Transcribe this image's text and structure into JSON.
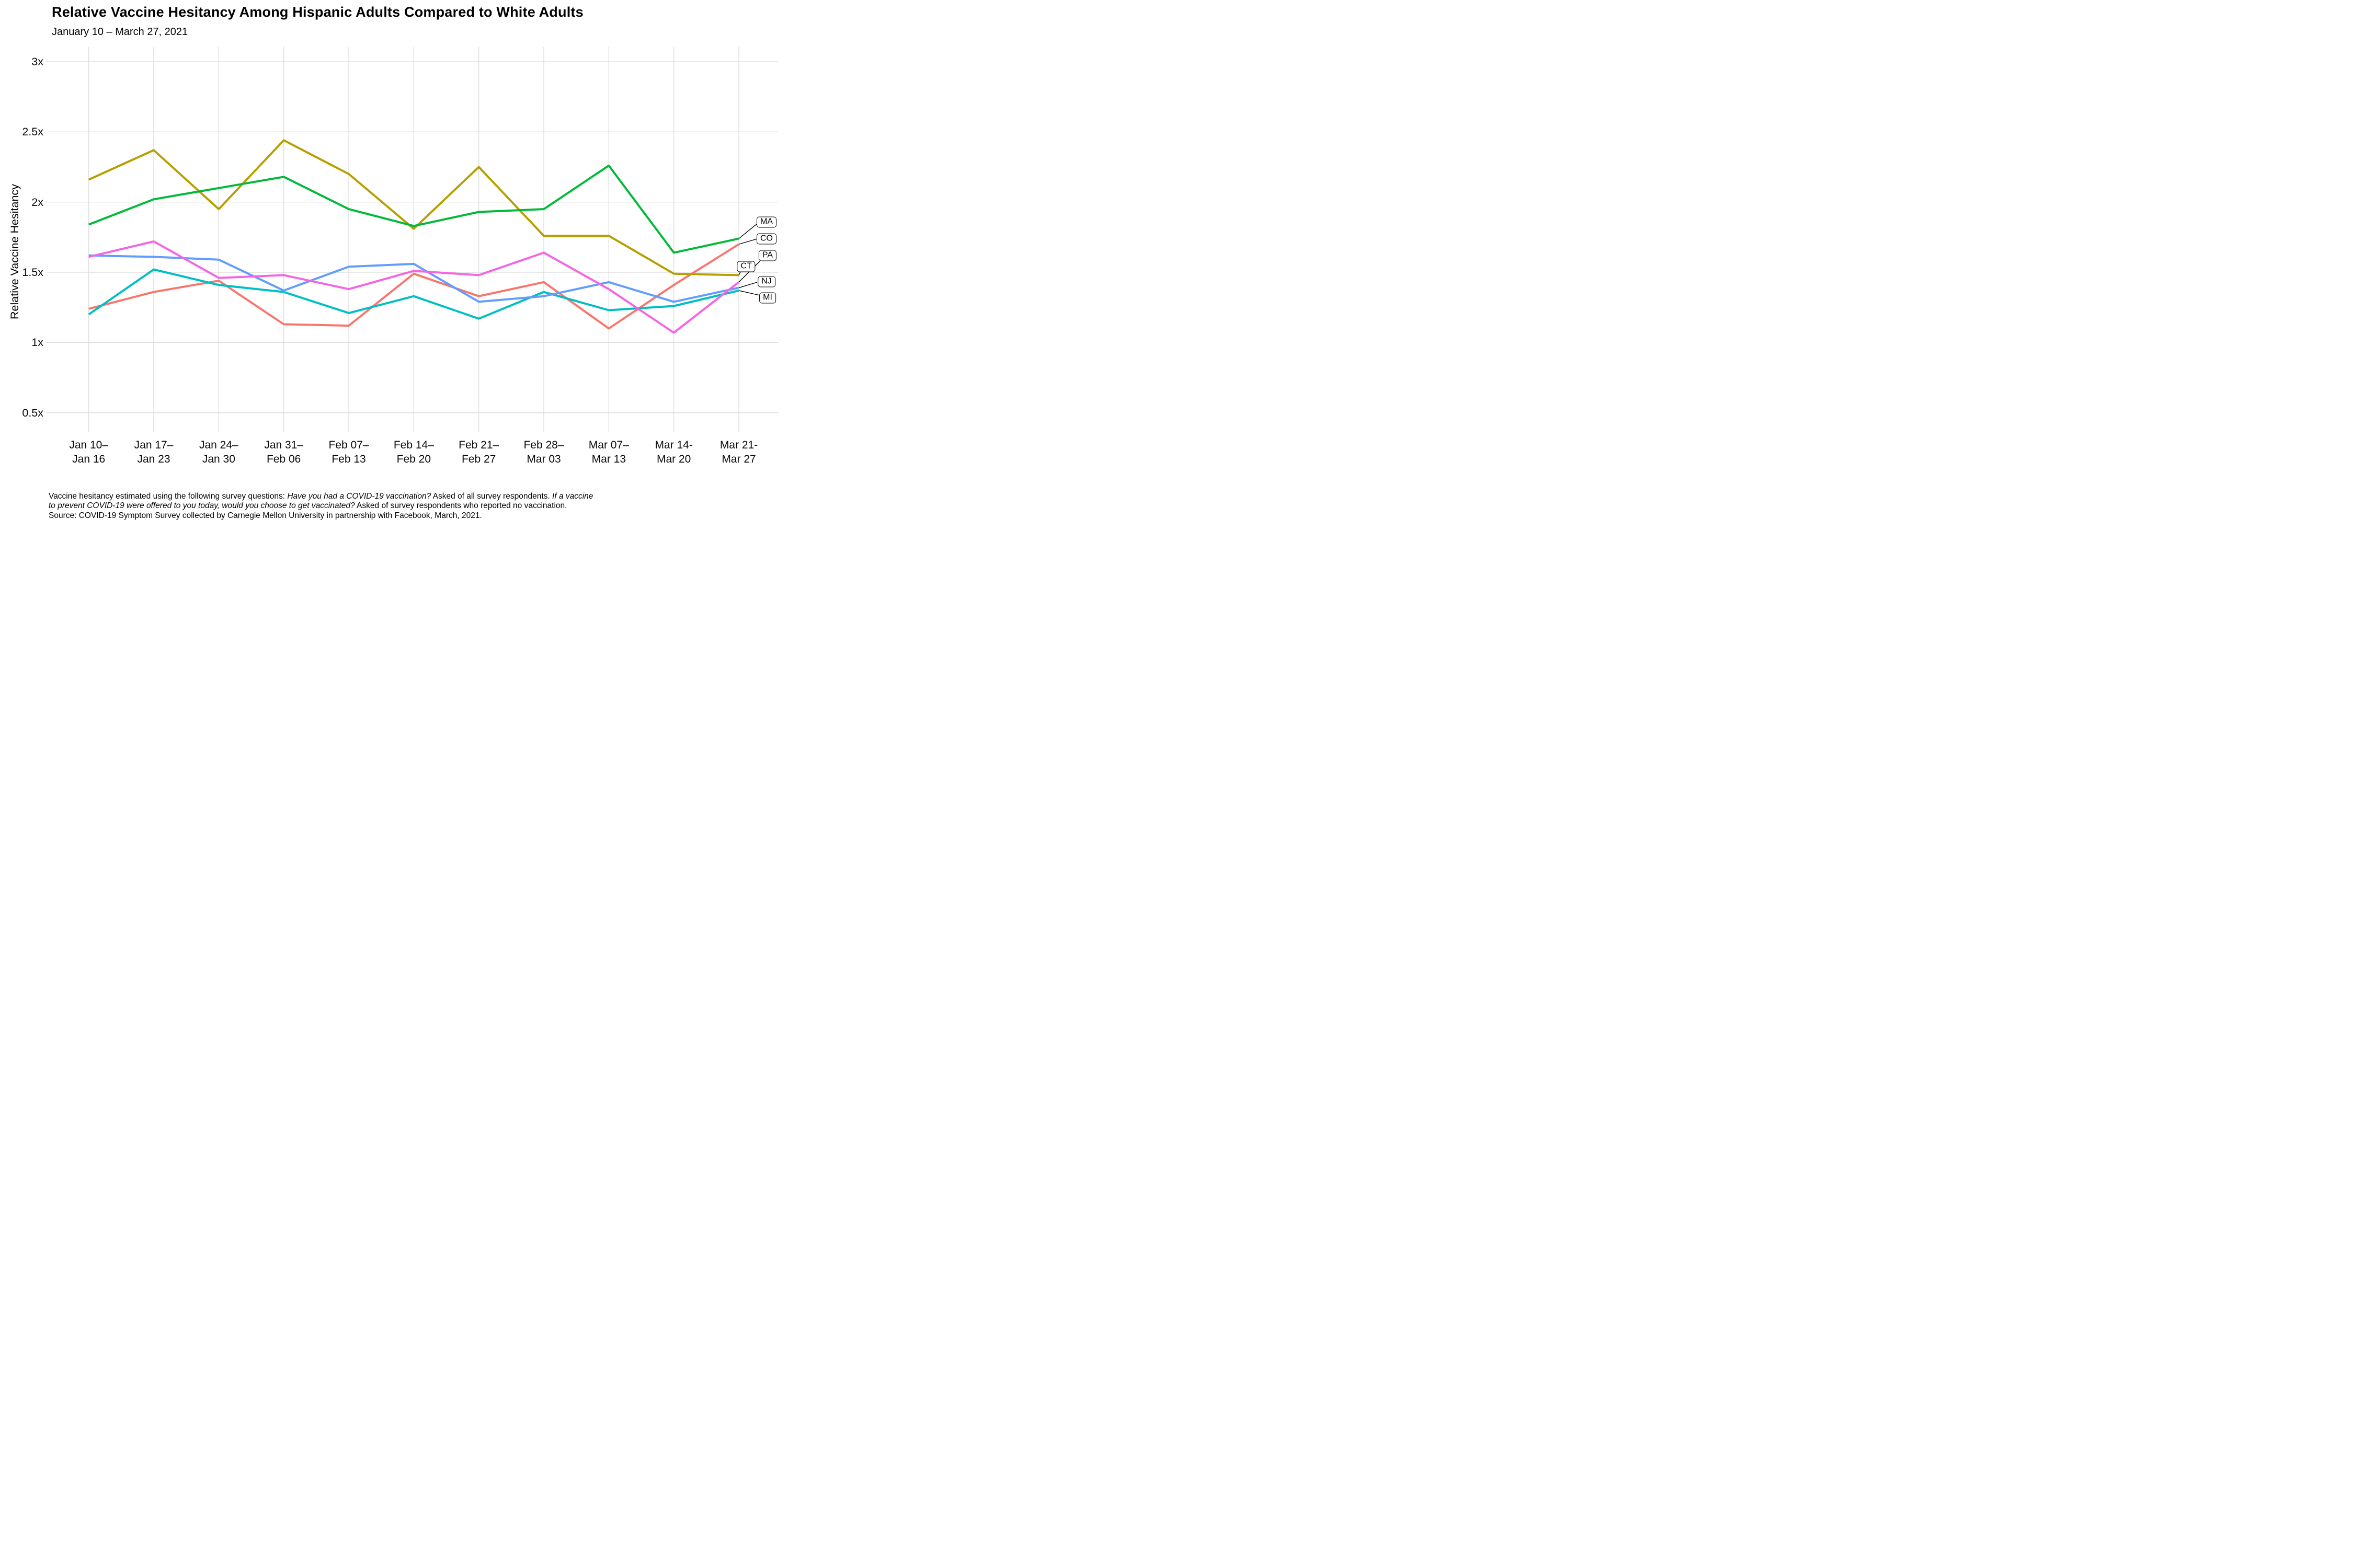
{
  "chart_data": {
    "type": "line",
    "title": "Relative Vaccine Hesitancy Among Hispanic Adults Compared to White Adults",
    "subtitle": "January 10 – March 27, 2021",
    "ylabel": "Relative Vaccine Hesitancy",
    "xlabel": "",
    "grid": true,
    "ylim": [
      0.36,
      3.1
    ],
    "y_ticks": [
      {
        "value": 3.0,
        "label": "3x"
      },
      {
        "value": 2.5,
        "label": "2.5x"
      },
      {
        "value": 2.0,
        "label": "2x"
      },
      {
        "value": 1.5,
        "label": "1.5x"
      },
      {
        "value": 1.0,
        "label": "1x"
      },
      {
        "value": 0.5,
        "label": "0.5x"
      }
    ],
    "x_categories": [
      [
        "Jan 10–",
        "Jan 16"
      ],
      [
        "Jan 17–",
        "Jan 23"
      ],
      [
        "Jan 24–",
        "Jan 30"
      ],
      [
        "Jan 31–",
        "Feb 06"
      ],
      [
        "Feb 07–",
        "Feb 13"
      ],
      [
        "Feb 14–",
        "Feb 20"
      ],
      [
        "Feb 21–",
        "Feb 27"
      ],
      [
        "Feb 28–",
        "Mar 03"
      ],
      [
        "Mar 07–",
        "Mar 13"
      ],
      [
        "Mar 14-",
        "Mar 20"
      ],
      [
        "Mar 21-",
        "Mar 27"
      ]
    ],
    "series": [
      {
        "name": "CO",
        "color": "#F8766D",
        "values": [
          1.24,
          1.36,
          1.44,
          1.13,
          1.12,
          1.49,
          1.33,
          1.43,
          1.1,
          1.41,
          1.7
        ]
      },
      {
        "name": "CT",
        "color": "#B79F00",
        "values": [
          2.16,
          2.37,
          1.95,
          2.44,
          2.2,
          1.81,
          2.25,
          1.76,
          1.76,
          1.49,
          1.48
        ]
      },
      {
        "name": "MA",
        "color": "#00BA38",
        "values": [
          1.84,
          2.02,
          2.1,
          2.18,
          1.95,
          1.83,
          1.93,
          1.95,
          2.26,
          1.64,
          1.74
        ]
      },
      {
        "name": "MI",
        "color": "#00BFC4",
        "values": [
          1.2,
          1.52,
          1.41,
          1.36,
          1.21,
          1.33,
          1.17,
          1.36,
          1.23,
          1.26,
          1.37
        ]
      },
      {
        "name": "NJ",
        "color": "#619CFF",
        "values": [
          1.62,
          1.61,
          1.59,
          1.37,
          1.54,
          1.56,
          1.29,
          1.33,
          1.43,
          1.29,
          1.39
        ]
      },
      {
        "name": "PA",
        "color": "#F564E3",
        "values": [
          1.61,
          1.72,
          1.46,
          1.48,
          1.38,
          1.51,
          1.48,
          1.64,
          1.38,
          1.07,
          1.43
        ]
      }
    ],
    "end_labels": [
      "MA",
      "CO",
      "PA",
      "CT",
      "NJ",
      "MI"
    ],
    "legend_position": "right-end-labels",
    "grid_color": "#DBDBDB"
  },
  "caption": {
    "lines": [
      [
        {
          "text": "Vaccine hesitancy estimated using the following survey questions: ",
          "italic": false
        },
        {
          "text": "Have you had a COVID-19 vaccination?",
          "italic": true
        },
        {
          "text": " Asked of all survey respondents. ",
          "italic": false
        },
        {
          "text": "If a vaccine",
          "italic": true
        }
      ],
      [
        {
          "text": "to prevent COVID-19 were offered to you today, would you choose to get vaccinated?",
          "italic": true
        },
        {
          "text": " Asked of survey respondents who reported no vaccination.",
          "italic": false
        }
      ],
      [
        {
          "text": "Source: COVID-19 Symptom Survey collected by Carnegie Mellon University in partnership with Facebook, March, 2021.",
          "italic": false
        }
      ]
    ]
  }
}
